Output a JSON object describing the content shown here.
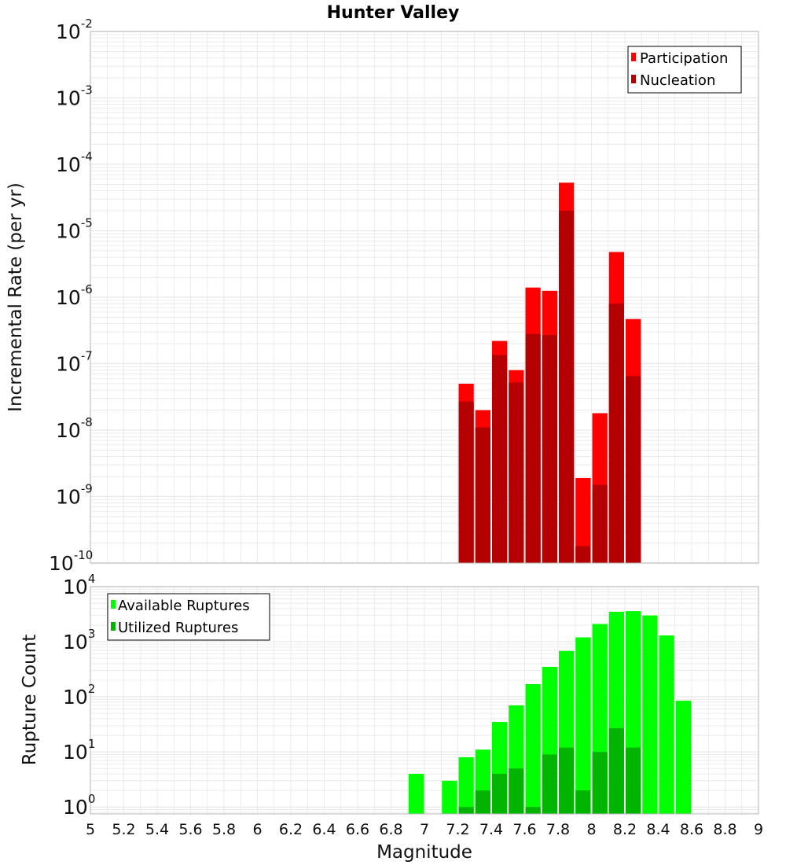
{
  "chart_data": [
    {
      "type": "bar",
      "title": "Hunter Valley",
      "xlabel": "",
      "ylabel": "Incremental Rate (per yr)",
      "yscale": "log",
      "xlim": [
        5,
        9
      ],
      "ylim": [
        1e-10,
        0.01
      ],
      "grid": true,
      "legend_position": "top-right",
      "bin_width": 0.1,
      "series": [
        {
          "name": "Participation",
          "color": "#ff0000",
          "x": [
            7.25,
            7.35,
            7.45,
            7.55,
            7.65,
            7.75,
            7.85,
            7.95,
            8.05,
            8.15,
            8.25
          ],
          "values": [
            5e-08,
            2e-08,
            2.2e-07,
            8e-08,
            1.4e-06,
            1.25e-06,
            5.3e-05,
            1.9e-09,
            1.8e-08,
            4.8e-06,
            4.7e-07
          ]
        },
        {
          "name": "Nucleation",
          "color": "#b40000",
          "x": [
            7.25,
            7.35,
            7.45,
            7.55,
            7.65,
            7.75,
            7.85,
            7.95,
            8.05,
            8.15,
            8.25
          ],
          "values": [
            2.7e-08,
            1.1e-08,
            1.35e-07,
            5.2e-08,
            2.8e-07,
            2.7e-07,
            2e-05,
            1.8e-10,
            1.5e-09,
            8e-07,
            6.5e-08
          ]
        }
      ]
    },
    {
      "type": "bar",
      "title": "",
      "xlabel": "Magnitude",
      "ylabel": "Rupture Count",
      "yscale": "log",
      "xlim": [
        5,
        9
      ],
      "ylim": [
        0.75,
        10000.0
      ],
      "grid": true,
      "legend_position": "top-left",
      "bin_width": 0.1,
      "series": [
        {
          "name": "Available Ruptures",
          "color": "#00ff00",
          "x": [
            6.95,
            7.15,
            7.25,
            7.35,
            7.45,
            7.55,
            7.65,
            7.75,
            7.85,
            7.95,
            8.05,
            8.15,
            8.25,
            8.35,
            8.45,
            8.55
          ],
          "values": [
            4,
            3,
            8,
            11,
            35,
            70,
            170,
            350,
            680,
            1200,
            2100,
            3500,
            3600,
            3000,
            1300,
            85
          ]
        },
        {
          "name": "Utilized Ruptures",
          "color": "#00b400",
          "x": [
            7.25,
            7.35,
            7.45,
            7.55,
            7.65,
            7.75,
            7.85,
            7.95,
            8.05,
            8.15,
            8.25
          ],
          "values": [
            1,
            2,
            4,
            5,
            1,
            9,
            12,
            2,
            10,
            27,
            12
          ]
        }
      ]
    }
  ],
  "axes": {
    "x_ticks": [
      "5",
      "5.2",
      "5.4",
      "5.6",
      "5.8",
      "6",
      "6.2",
      "6.4",
      "6.6",
      "6.8",
      "7",
      "7.2",
      "7.4",
      "7.6",
      "7.8",
      "8",
      "8.2",
      "8.4",
      "8.6",
      "8.8",
      "9"
    ],
    "top_y_ticks": [
      {
        "base": "10",
        "exp": "-2"
      },
      {
        "base": "10",
        "exp": "-3"
      },
      {
        "base": "10",
        "exp": "-4"
      },
      {
        "base": "10",
        "exp": "-5"
      },
      {
        "base": "10",
        "exp": "-6"
      },
      {
        "base": "10",
        "exp": "-7"
      },
      {
        "base": "10",
        "exp": "-8"
      },
      {
        "base": "10",
        "exp": "-9"
      },
      {
        "base": "10",
        "exp": "-10"
      }
    ],
    "bottom_y_ticks": [
      {
        "base": "10",
        "exp": "4"
      },
      {
        "base": "10",
        "exp": "3"
      },
      {
        "base": "10",
        "exp": "2"
      },
      {
        "base": "10",
        "exp": "1"
      },
      {
        "base": "10",
        "exp": "0"
      }
    ]
  },
  "colors": {
    "grid": "#e6e6e6",
    "frame": "#b4b4b4"
  }
}
